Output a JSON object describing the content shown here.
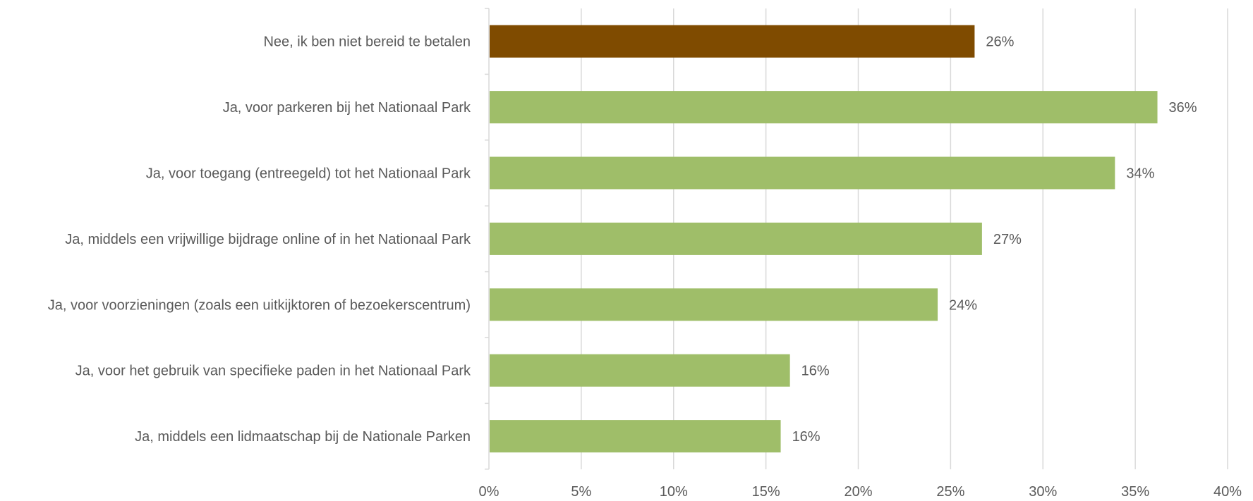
{
  "chart_data": {
    "type": "bar",
    "orientation": "horizontal",
    "title": "",
    "xlabel": "",
    "ylabel": "",
    "xlim": [
      0,
      40
    ],
    "x_ticks": [
      0,
      5,
      10,
      15,
      20,
      25,
      30,
      35,
      40
    ],
    "x_tick_labels": [
      "0%",
      "5%",
      "10%",
      "15%",
      "20%",
      "25%",
      "30%",
      "35%",
      "40%"
    ],
    "grid": "vertical",
    "legend": "none",
    "categories": [
      "Nee, ik ben niet bereid te betalen",
      "Ja, voor parkeren bij het Nationaal Park",
      "Ja, voor toegang (entreegeld) tot het Nationaal Park",
      "Ja, middels  een vrijwillige bijdrage online of in het Nationaal Park",
      "Ja, voor voorzieningen (zoals een uitkijktoren of bezoekerscentrum)",
      "Ja, voor het gebruik van specifieke paden in het Nationaal Park",
      "Ja, middels een lidmaatschap bij de Nationale Parken"
    ],
    "values": [
      26.3,
      36.2,
      33.9,
      26.7,
      24.3,
      16.3,
      15.8
    ],
    "value_labels": [
      "26%",
      "36%",
      "34%",
      "27%",
      "24%",
      "16%",
      "16%"
    ],
    "colors": {
      "highlight": "#7F4B00",
      "default": "#9FBE69",
      "grid": "#D9D9D9",
      "text": "#595959"
    },
    "highlight_index": 0
  }
}
